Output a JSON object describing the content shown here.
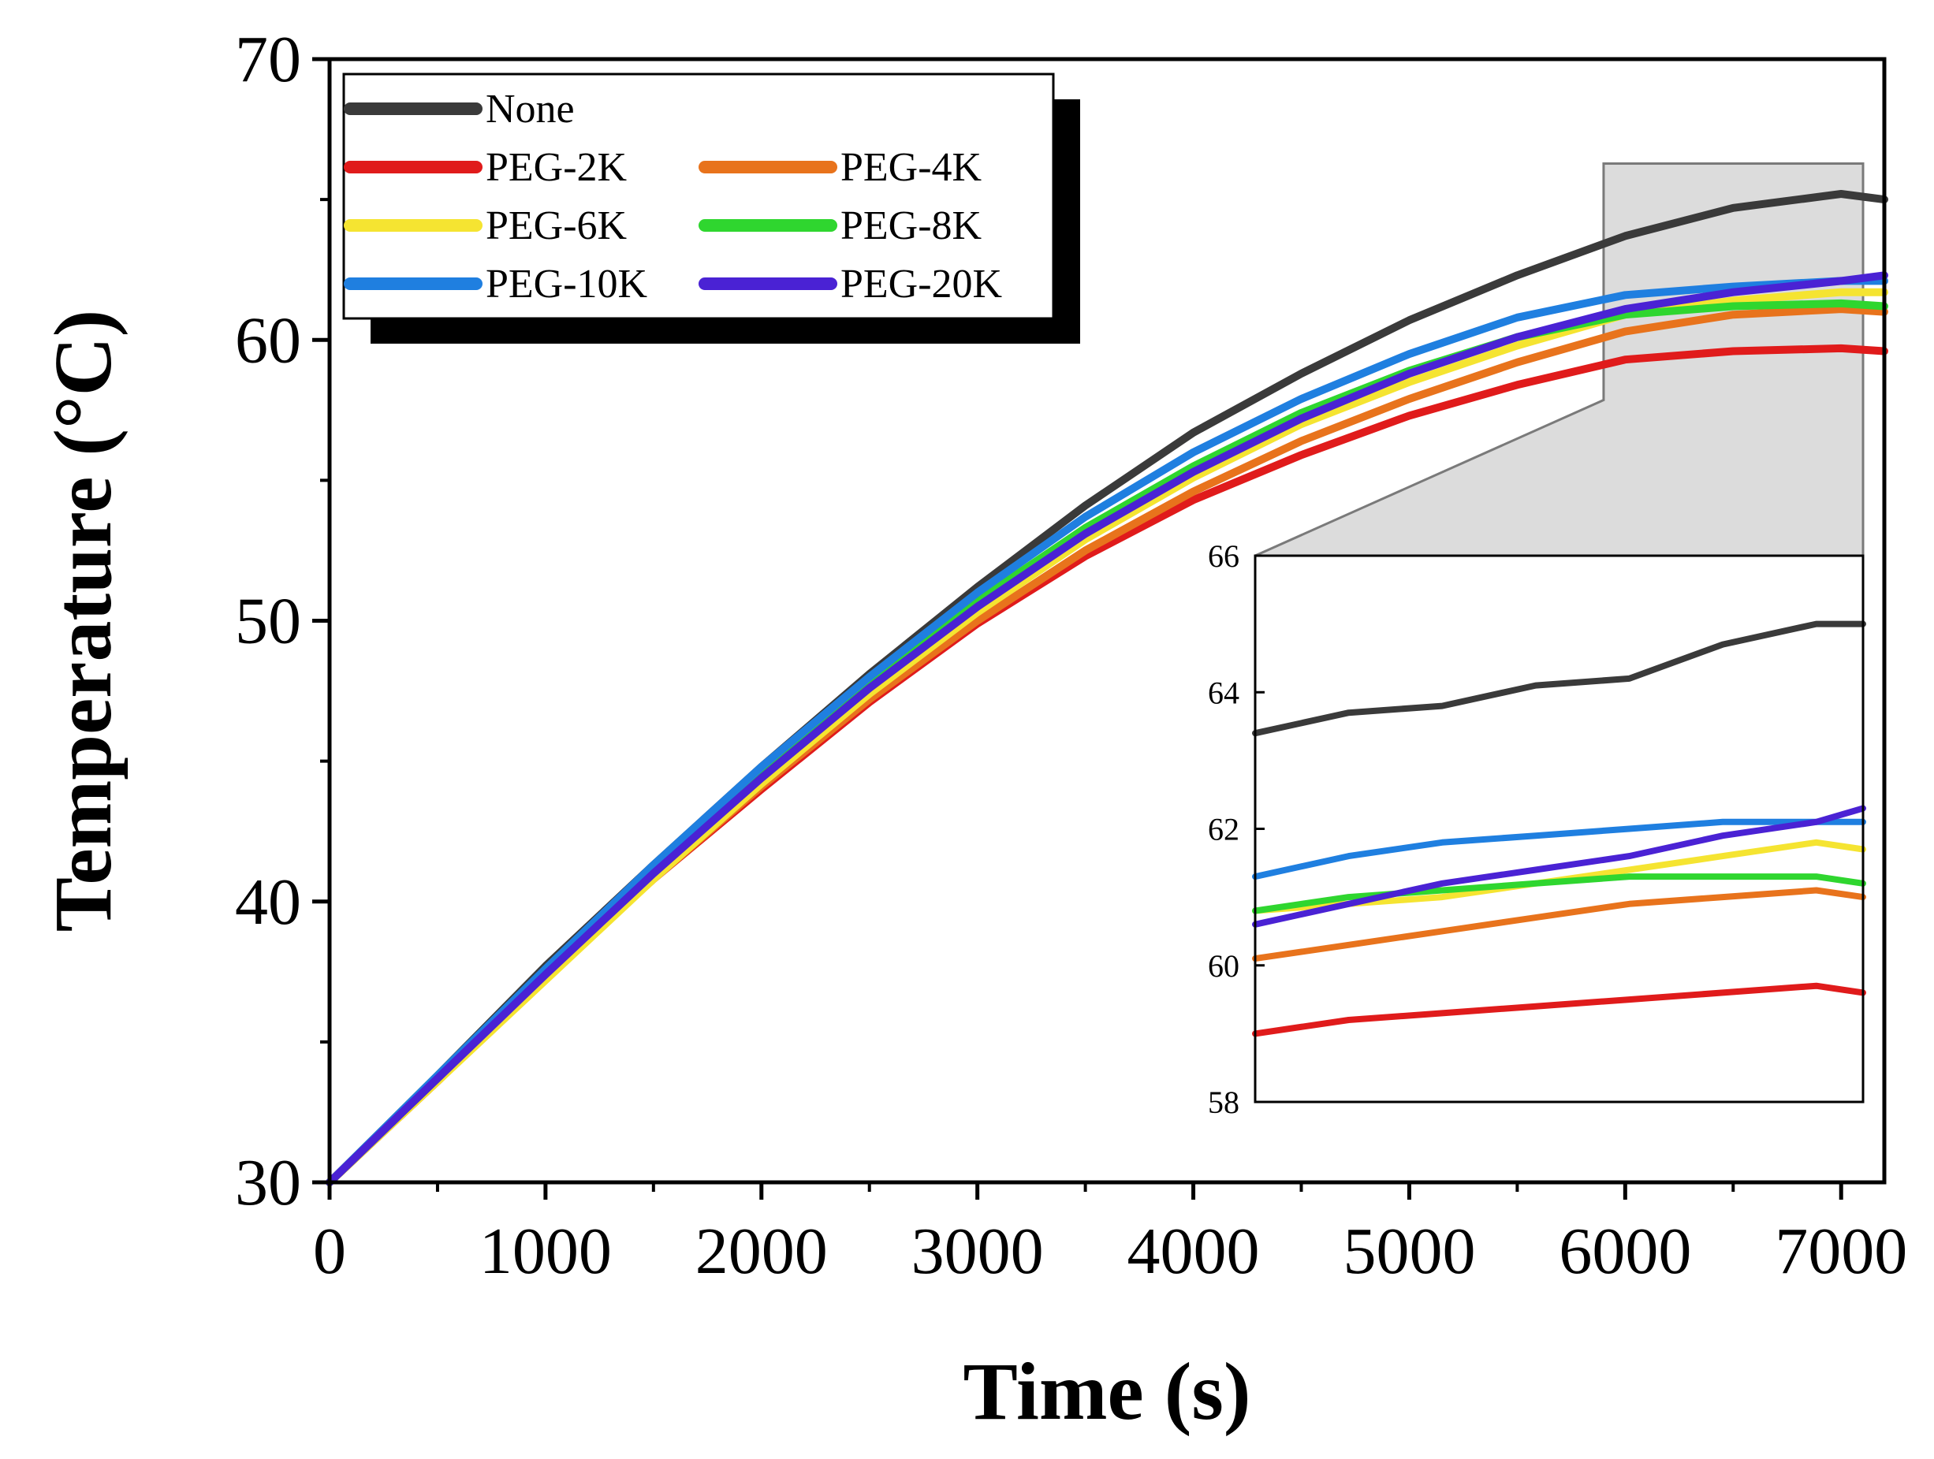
{
  "chart_data": {
    "type": "line",
    "xlabel": "Time (s)",
    "ylabel": "Temperature (°C)",
    "xlim": [
      0,
      7200
    ],
    "ylim": [
      30,
      70
    ],
    "xticks": [
      0,
      1000,
      2000,
      3000,
      4000,
      5000,
      6000,
      7000
    ],
    "yticks": [
      30,
      40,
      50,
      60,
      70
    ],
    "legend_position": "top-left",
    "series": [
      {
        "name": "None",
        "color": "#3a3a3a",
        "x": [
          0,
          500,
          1000,
          1500,
          2000,
          2500,
          3000,
          3500,
          4000,
          4500,
          5000,
          5500,
          6000,
          6500,
          7000,
          7200
        ],
        "y": [
          30.0,
          33.8,
          37.7,
          41.3,
          44.8,
          48.1,
          51.2,
          54.1,
          56.7,
          58.8,
          60.7,
          62.3,
          63.7,
          64.7,
          65.2,
          65.0
        ]
      },
      {
        "name": "PEG-2K",
        "color": "#e01b1b",
        "x": [
          0,
          500,
          1000,
          1500,
          2000,
          2500,
          3000,
          3500,
          4000,
          4500,
          5000,
          5500,
          6000,
          6500,
          7000,
          7200
        ],
        "y": [
          30.0,
          33.6,
          37.3,
          40.8,
          44.0,
          47.1,
          49.9,
          52.3,
          54.3,
          55.9,
          57.3,
          58.4,
          59.3,
          59.6,
          59.7,
          59.6
        ]
      },
      {
        "name": "PEG-4K",
        "color": "#e8731c",
        "x": [
          0,
          500,
          1000,
          1500,
          2000,
          2500,
          3000,
          3500,
          4000,
          4500,
          5000,
          5500,
          6000,
          6500,
          7000,
          7200
        ],
        "y": [
          30.0,
          33.6,
          37.3,
          40.8,
          44.1,
          47.2,
          50.0,
          52.5,
          54.6,
          56.4,
          57.9,
          59.2,
          60.3,
          60.9,
          61.1,
          61.0
        ]
      },
      {
        "name": "PEG-6K",
        "color": "#f5e431",
        "x": [
          0,
          500,
          1000,
          1500,
          2000,
          2500,
          3000,
          3500,
          4000,
          4500,
          5000,
          5500,
          6000,
          6500,
          7000,
          7200
        ],
        "y": [
          30.0,
          33.6,
          37.2,
          40.8,
          44.2,
          47.4,
          50.3,
          52.9,
          55.1,
          57.0,
          58.5,
          59.8,
          60.9,
          61.4,
          61.7,
          61.7
        ]
      },
      {
        "name": "PEG-8K",
        "color": "#2fd62f",
        "x": [
          0,
          500,
          1000,
          1500,
          2000,
          2500,
          3000,
          3500,
          4000,
          4500,
          5000,
          5500,
          6000,
          6500,
          7000,
          7200
        ],
        "y": [
          30.0,
          33.7,
          37.5,
          41.2,
          44.6,
          47.8,
          50.7,
          53.3,
          55.5,
          57.4,
          58.9,
          60.1,
          60.9,
          61.2,
          61.3,
          61.2
        ]
      },
      {
        "name": "PEG-10K",
        "color": "#1f7fe0",
        "x": [
          0,
          500,
          1000,
          1500,
          2000,
          2500,
          3000,
          3500,
          4000,
          4500,
          5000,
          5500,
          6000,
          6500,
          7000,
          7200
        ],
        "y": [
          30.0,
          33.8,
          37.6,
          41.3,
          44.8,
          48.0,
          51.0,
          53.7,
          56.0,
          57.9,
          59.5,
          60.8,
          61.6,
          61.9,
          62.1,
          62.1
        ]
      },
      {
        "name": "PEG-20K",
        "color": "#4a22d4",
        "x": [
          0,
          500,
          1000,
          1500,
          2000,
          2500,
          3000,
          3500,
          4000,
          4500,
          5000,
          5500,
          6000,
          6500,
          7000,
          7200
        ],
        "y": [
          30.0,
          33.7,
          37.4,
          41.0,
          44.4,
          47.6,
          50.5,
          53.1,
          55.3,
          57.2,
          58.8,
          60.1,
          61.1,
          61.7,
          62.1,
          62.3
        ]
      }
    ],
    "inset": {
      "xlim": [
        5900,
        7200
      ],
      "ylim": [
        58,
        66
      ],
      "yticks": [
        58,
        60,
        62,
        64,
        66
      ],
      "series": [
        {
          "name": "None",
          "x": [
            5900,
            6100,
            6300,
            6500,
            6700,
            6900,
            7100,
            7200
          ],
          "y": [
            63.4,
            63.7,
            63.8,
            64.1,
            64.2,
            64.7,
            65.0,
            65.0
          ]
        },
        {
          "name": "PEG-2K",
          "x": [
            5900,
            6100,
            6300,
            6500,
            6700,
            6900,
            7100,
            7200
          ],
          "y": [
            59.0,
            59.2,
            59.3,
            59.4,
            59.5,
            59.6,
            59.7,
            59.6
          ]
        },
        {
          "name": "PEG-4K",
          "x": [
            5900,
            6100,
            6300,
            6500,
            6700,
            6900,
            7100,
            7200
          ],
          "y": [
            60.1,
            60.3,
            60.5,
            60.7,
            60.9,
            61.0,
            61.1,
            61.0
          ]
        },
        {
          "name": "PEG-6K",
          "x": [
            5900,
            6100,
            6300,
            6500,
            6700,
            6900,
            7100,
            7200
          ],
          "y": [
            60.8,
            60.9,
            61.0,
            61.2,
            61.4,
            61.6,
            61.8,
            61.7
          ]
        },
        {
          "name": "PEG-8K",
          "x": [
            5900,
            6100,
            6300,
            6500,
            6700,
            6900,
            7100,
            7200
          ],
          "y": [
            60.8,
            61.0,
            61.1,
            61.2,
            61.3,
            61.3,
            61.3,
            61.2
          ]
        },
        {
          "name": "PEG-10K",
          "x": [
            5900,
            6100,
            6300,
            6500,
            6700,
            6900,
            7100,
            7200
          ],
          "y": [
            61.3,
            61.6,
            61.8,
            61.9,
            62.0,
            62.1,
            62.1,
            62.1
          ]
        },
        {
          "name": "PEG-20K",
          "x": [
            5900,
            6100,
            6300,
            6500,
            6700,
            6900,
            7100,
            7200
          ],
          "y": [
            60.6,
            60.9,
            61.2,
            61.4,
            61.6,
            61.9,
            62.1,
            62.3
          ]
        }
      ]
    }
  }
}
